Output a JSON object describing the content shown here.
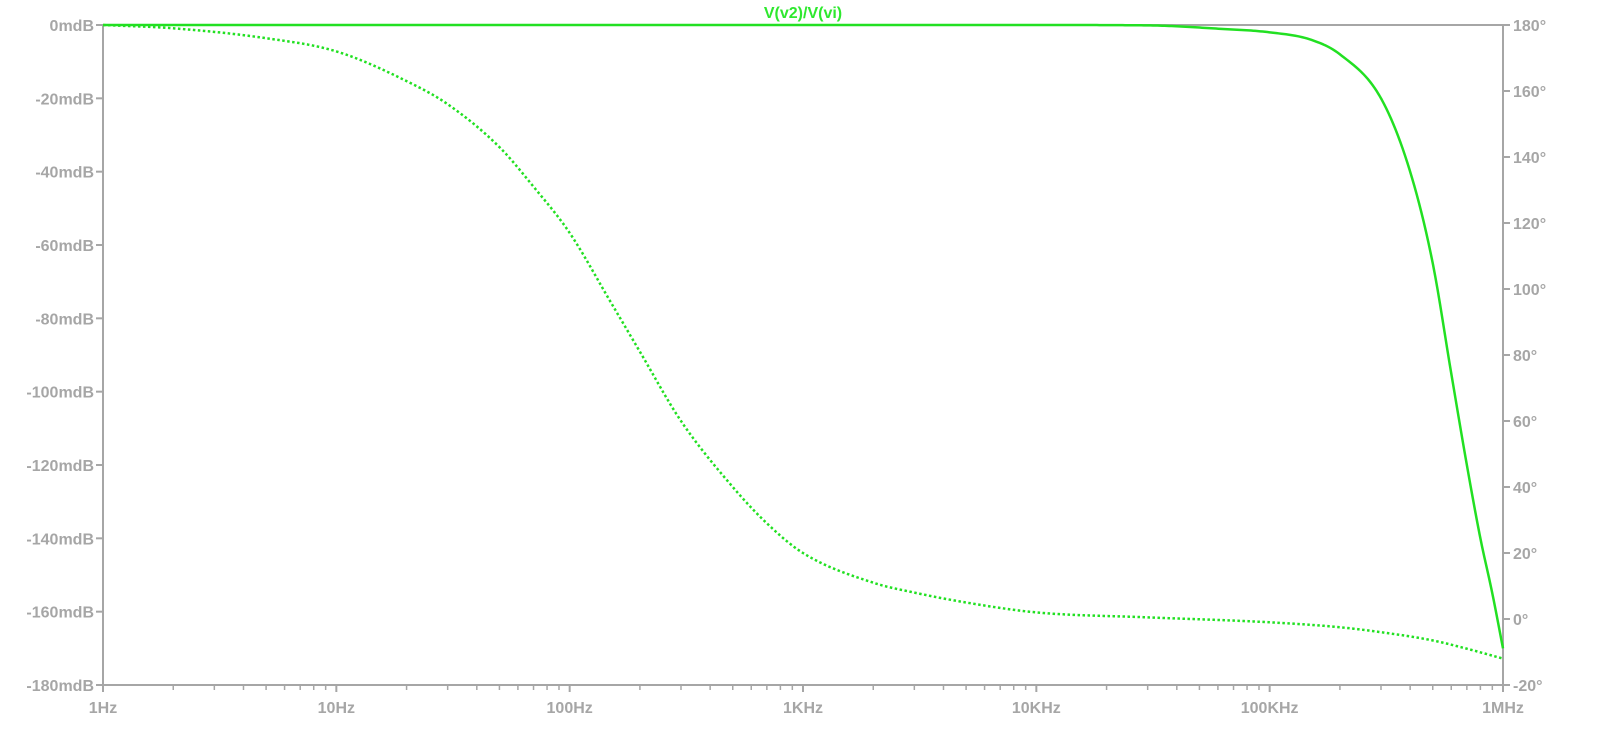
{
  "chart_data": {
    "type": "line",
    "title": "V(v2)/V(vi)",
    "x_scale": "log",
    "xlim_hz": [
      1,
      1000000
    ],
    "x_ticks": [
      {
        "value": 1,
        "label": "1Hz"
      },
      {
        "value": 10,
        "label": "10Hz"
      },
      {
        "value": 100,
        "label": "100Hz"
      },
      {
        "value": 1000,
        "label": "1KHz"
      },
      {
        "value": 10000,
        "label": "10KHz"
      },
      {
        "value": 100000,
        "label": "100KHz"
      },
      {
        "value": 1000000,
        "label": "1MHz"
      }
    ],
    "y_left": {
      "unit": "mdB",
      "ylim": [
        -180,
        0
      ],
      "ticks": [
        {
          "value": 0,
          "label": "0mdB"
        },
        {
          "value": -20,
          "label": "-20mdB"
        },
        {
          "value": -40,
          "label": "-40mdB"
        },
        {
          "value": -60,
          "label": "-60mdB"
        },
        {
          "value": -80,
          "label": "-80mdB"
        },
        {
          "value": -100,
          "label": "-100mdB"
        },
        {
          "value": -120,
          "label": "-120mdB"
        },
        {
          "value": -140,
          "label": "-140mdB"
        },
        {
          "value": -160,
          "label": "-160mdB"
        },
        {
          "value": -180,
          "label": "-180mdB"
        }
      ]
    },
    "y_right": {
      "unit": "°",
      "ylim": [
        -20,
        180
      ],
      "ticks": [
        {
          "value": 180,
          "label": "180°"
        },
        {
          "value": 160,
          "label": "160°"
        },
        {
          "value": 140,
          "label": "140°"
        },
        {
          "value": 120,
          "label": "120°"
        },
        {
          "value": 100,
          "label": "100°"
        },
        {
          "value": 80,
          "label": "80°"
        },
        {
          "value": 60,
          "label": "60°"
        },
        {
          "value": 40,
          "label": "40°"
        },
        {
          "value": 20,
          "label": "20°"
        },
        {
          "value": 0,
          "label": "0°"
        },
        {
          "value": -20,
          "label": "-20°"
        }
      ]
    },
    "series": [
      {
        "axis": "left",
        "style": "solid",
        "color": "#22e022",
        "x": [
          1,
          10,
          100,
          1000,
          10000,
          30000,
          60000,
          100000,
          150000,
          200000,
          300000,
          400000,
          500000,
          600000,
          700000,
          800000,
          900000,
          1000000
        ],
        "y": [
          0,
          0,
          0,
          0,
          0,
          -0.1,
          -1,
          -2,
          -4,
          -8,
          -20,
          -40,
          -65,
          -95,
          -120,
          -140,
          -155,
          -170
        ]
      },
      {
        "axis": "right",
        "style": "dotted",
        "color": "#22e022",
        "x": [
          1,
          2,
          5,
          10,
          20,
          30,
          50,
          70,
          100,
          150,
          200,
          300,
          500,
          700,
          1000,
          2000,
          3000,
          5000,
          10000,
          30000,
          100000,
          200000,
          300000,
          500000,
          700000,
          1000000
        ],
        "y": [
          180,
          179,
          176,
          172,
          163,
          156,
          143,
          131,
          117,
          96,
          81,
          60,
          40,
          29,
          20,
          11,
          8,
          5,
          2,
          0.5,
          -1,
          -2.5,
          -4,
          -6.5,
          -9,
          -12
        ]
      }
    ]
  }
}
